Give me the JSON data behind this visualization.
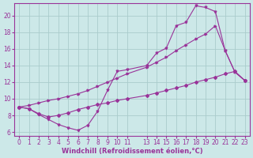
{
  "background_color": "#cce8e8",
  "grid_color": "#aacccc",
  "line_color": "#993399",
  "xlabel": "Windchill (Refroidissement éolien,°C)",
  "xlabel_fontsize": 6,
  "tick_fontsize": 5.5,
  "ylim": [
    5.5,
    21.5
  ],
  "xlim": [
    -0.5,
    23.5
  ],
  "yticks": [
    6,
    8,
    10,
    12,
    14,
    16,
    18,
    20
  ],
  "xticks": [
    0,
    1,
    2,
    3,
    4,
    5,
    6,
    7,
    8,
    9,
    10,
    11,
    13,
    14,
    15,
    16,
    17,
    18,
    19,
    20,
    21,
    22,
    23
  ],
  "curve1_x": [
    0,
    1,
    2,
    3,
    4,
    5,
    6,
    7,
    8,
    9,
    10,
    11,
    13,
    14,
    15,
    16,
    17,
    18,
    19,
    20,
    21,
    22,
    23
  ],
  "curve1_y": [
    9.0,
    8.8,
    8.1,
    7.5,
    6.9,
    6.5,
    6.2,
    6.8,
    8.5,
    11.0,
    13.3,
    13.5,
    14.0,
    15.5,
    16.1,
    18.8,
    19.2,
    21.2,
    21.0,
    20.5,
    15.8,
    13.2,
    12.2
  ],
  "curve2_x": [
    0,
    1,
    2,
    3,
    4,
    5,
    6,
    7,
    8,
    9,
    10,
    11,
    13,
    14,
    15,
    16,
    17,
    18,
    19,
    20,
    21,
    22,
    23
  ],
  "curve2_y": [
    9.0,
    9.2,
    9.5,
    9.8,
    10.0,
    10.3,
    10.6,
    11.0,
    11.5,
    12.0,
    12.5,
    13.0,
    13.8,
    14.4,
    15.0,
    15.8,
    16.5,
    17.2,
    17.8,
    18.8,
    15.8,
    13.2,
    12.2
  ],
  "curve3_x": [
    0,
    1,
    2,
    3,
    4,
    5,
    6,
    7,
    8,
    9,
    10,
    11,
    13,
    14,
    15,
    16,
    17,
    18,
    19,
    20,
    21,
    22,
    23
  ],
  "curve3_y": [
    9.0,
    8.8,
    8.2,
    7.8,
    8.0,
    8.3,
    8.7,
    9.0,
    9.3,
    9.5,
    9.8,
    10.0,
    10.4,
    10.7,
    11.0,
    11.3,
    11.6,
    12.0,
    12.3,
    12.6,
    13.0,
    13.3,
    12.2
  ]
}
